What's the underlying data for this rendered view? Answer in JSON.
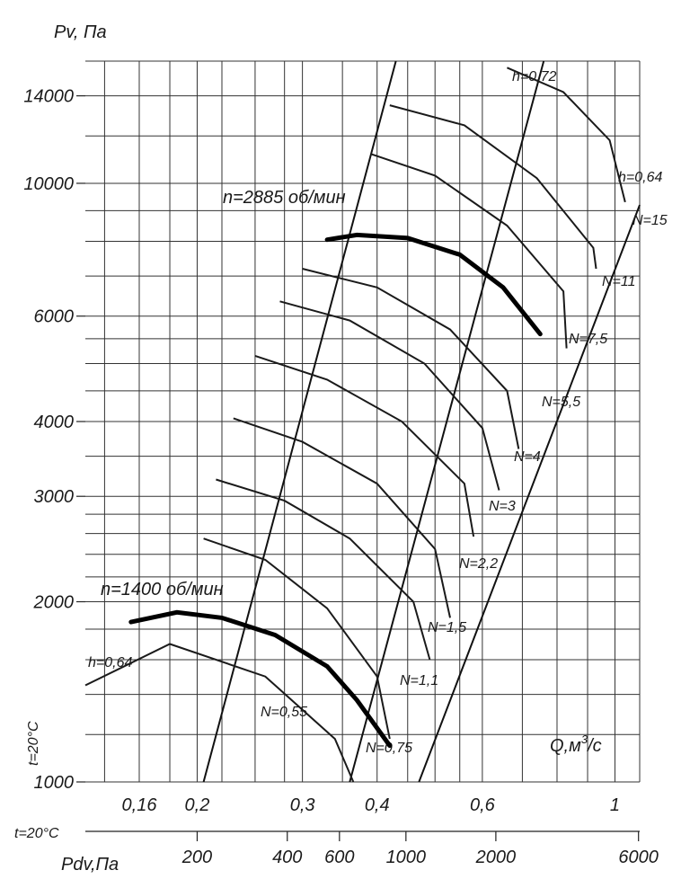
{
  "chart_data": {
    "type": "line",
    "y_axis": {
      "label": "Pv, Па",
      "scale": "log",
      "ylim": [
        1000,
        16000
      ],
      "ticks": [
        1000,
        2000,
        3000,
        4000,
        6000,
        10000,
        14000
      ],
      "tick_labels": [
        "1000",
        "2000",
        "3000",
        "4000",
        "6000",
        "10000",
        "14000"
      ]
    },
    "x_axis": {
      "label": "Q,м³/с",
      "label_main": "Q,м",
      "label_sup": "3",
      "label_tail": "/с",
      "scale": "log",
      "xlim": [
        0.13,
        1.1
      ],
      "ticks": [
        0.16,
        0.2,
        0.3,
        0.4,
        0.6,
        1
      ],
      "tick_labels": [
        "0,16",
        "0,2",
        "0,3",
        "0,4",
        "0,6",
        "1"
      ]
    },
    "pdv_axis": {
      "label": "Pdv,Па",
      "ticks": [
        200,
        400,
        600,
        1000,
        2000,
        6000
      ],
      "tick_labels": [
        "200",
        "400",
        "600",
        "1000",
        "2000",
        "6000"
      ]
    },
    "temperature_label": "t=20°C",
    "speed_curves": [
      {
        "name": "n=1400 об/мин",
        "points": [
          [
            0.155,
            1850
          ],
          [
            0.185,
            1920
          ],
          [
            0.22,
            1880
          ],
          [
            0.27,
            1760
          ],
          [
            0.33,
            1560
          ],
          [
            0.37,
            1370
          ],
          [
            0.42,
            1150
          ]
        ]
      },
      {
        "name": "n=2885 об/мин",
        "points": [
          [
            0.33,
            8050
          ],
          [
            0.37,
            8200
          ],
          [
            0.45,
            8100
          ],
          [
            0.55,
            7600
          ],
          [
            0.65,
            6700
          ],
          [
            0.75,
            5600
          ]
        ]
      }
    ],
    "efficiency_labels": [
      "h=0,72",
      "h=0,64",
      "h=0,64"
    ],
    "power_labels": [
      "N=0,55",
      "N=0,75",
      "N=1,1",
      "N=1,5",
      "N=2,2",
      "N=3",
      "N=4",
      "N=5,5",
      "N=7,5",
      "N=11",
      "N=15"
    ]
  },
  "annotations": {
    "n_low": "n=1400 об/мин",
    "n_high": "n=2885 об/мин",
    "h072": "h=0,72",
    "h064_top": "h=0,64",
    "h064_left": "h=0,64",
    "t_left": "t=20°C",
    "t_bottom": "t=20°C"
  }
}
